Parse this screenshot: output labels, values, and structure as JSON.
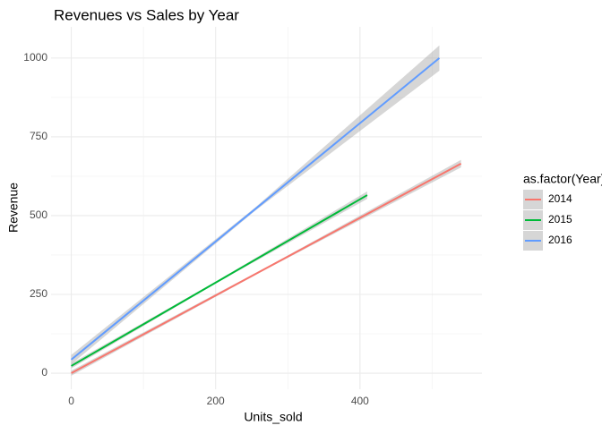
{
  "chart_data": {
    "type": "line",
    "title": "Revenues vs Sales by Year",
    "x_label": "Units_sold",
    "y_label": "Revenue",
    "legend_title": "as.factor(Year)",
    "xlim": [
      -28,
      569
    ],
    "ylim": [
      -51,
      1099
    ],
    "xticks": [
      0,
      200,
      400
    ],
    "yticks": [
      0,
      250,
      500,
      750,
      1000
    ],
    "x_minor_grid": [
      100,
      300,
      500
    ],
    "y_minor_grid": [
      125,
      375,
      625,
      875
    ],
    "grid": true,
    "legend": "right",
    "series": [
      {
        "name": "2014",
        "color": "#F8766D",
        "x": [
          0,
          270,
          540
        ],
        "values": [
          0,
          333,
          665
        ],
        "lower": [
          -8,
          330,
          653
        ],
        "upper": [
          8,
          336,
          677
        ]
      },
      {
        "name": "2015",
        "color": "#00BA38",
        "x": [
          0,
          205,
          410
        ],
        "values": [
          23,
          294,
          565
        ],
        "lower": [
          15,
          291,
          553
        ],
        "upper": [
          31,
          297,
          577
        ]
      },
      {
        "name": "2016",
        "color": "#619CFF",
        "x": [
          0,
          255,
          510
        ],
        "values": [
          43,
          521,
          1000
        ],
        "lower": [
          28,
          516,
          960
        ],
        "upper": [
          58,
          526,
          1040
        ]
      }
    ]
  }
}
